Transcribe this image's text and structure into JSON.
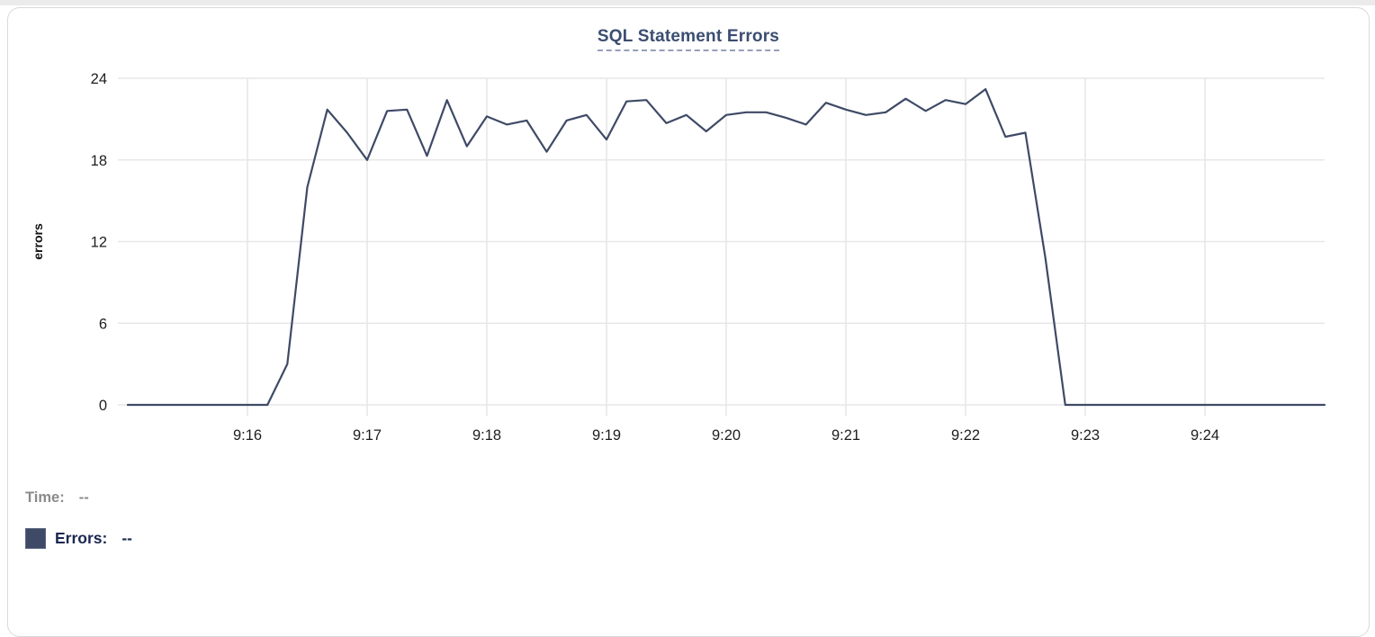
{
  "page": {
    "top_edge_color": "#ebebeb"
  },
  "card": {
    "border_color": "#d9d9d9",
    "background": "#ffffff"
  },
  "chart_data": {
    "type": "line",
    "title": "SQL Statement Errors",
    "xlabel": "",
    "ylabel": "errors",
    "x_start": "9:15:00",
    "x_end": "9:25:00",
    "point_interval_seconds": 10,
    "x_tick_labels": [
      "9:16",
      "9:17",
      "9:18",
      "9:19",
      "9:20",
      "9:21",
      "9:22",
      "9:23",
      "9:24"
    ],
    "y_ticks": [
      0,
      6,
      12,
      18,
      24
    ],
    "ylim": [
      0,
      24
    ],
    "grid": true,
    "legend_position": "bottom-left",
    "series": [
      {
        "name": "Errors",
        "color": "#3e4a66",
        "values": [
          0,
          0,
          0,
          0,
          0,
          0,
          0,
          0,
          3,
          16,
          21.7,
          20,
          18,
          21.6,
          21.7,
          18.3,
          22.4,
          19,
          21.2,
          20.6,
          20.9,
          18.6,
          20.9,
          21.3,
          19.5,
          22.3,
          22.4,
          20.7,
          21.3,
          20.1,
          21.3,
          21.5,
          21.5,
          21.1,
          20.6,
          22.2,
          21.7,
          21.3,
          21.5,
          22.5,
          21.6,
          22.4,
          22.1,
          23.2,
          19.7,
          20,
          10.8,
          0,
          0,
          0,
          0,
          0,
          0,
          0,
          0,
          0,
          0,
          0,
          0,
          0,
          0
        ]
      }
    ]
  },
  "tooltip": {
    "time_label": "Time:",
    "time_value": "--",
    "errors_label": "Errors:",
    "errors_value": "--",
    "swatch_color": "#3f4b66",
    "time_color": "#8b8b8b",
    "errors_color": "#1b2850"
  },
  "styles": {
    "title_color": "#3b4d71",
    "title_underline_color": "#96a0ba",
    "grid_color": "#e7e7e7",
    "tick_label_color": "#1e1e1e",
    "axis_label_color": "#111111"
  }
}
